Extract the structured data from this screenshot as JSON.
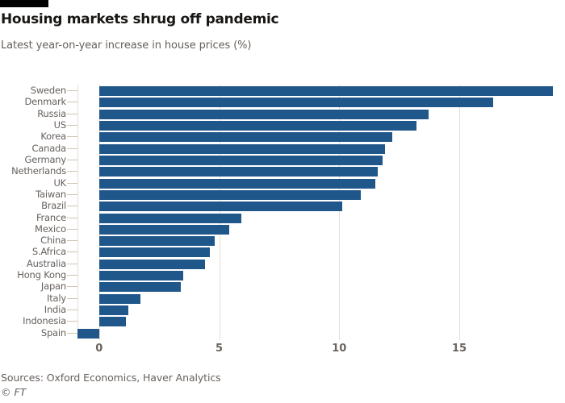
{
  "header": {
    "title": "Housing markets shrug off pandemic",
    "subtitle": "Latest year-on-year increase in house prices (%)"
  },
  "chart_data": {
    "type": "bar",
    "orientation": "horizontal",
    "title": "Housing markets shrug off pandemic",
    "subtitle": "Latest year-on-year increase in house prices (%)",
    "xlabel": "",
    "ylabel": "",
    "categories": [
      "Sweden",
      "Denmark",
      "Russia",
      "US",
      "Korea",
      "Canada",
      "Germany",
      "Netherlands",
      "UK",
      "Taiwan",
      "Brazil",
      "France",
      "Mexico",
      "China",
      "S.Africa",
      "Australia",
      "Hong Kong",
      "Japan",
      "Italy",
      "India",
      "Indonesia",
      "Spain"
    ],
    "values": [
      18.9,
      16.4,
      13.7,
      13.2,
      12.2,
      11.9,
      11.8,
      11.6,
      11.5,
      10.9,
      10.1,
      5.9,
      5.4,
      4.8,
      4.6,
      4.4,
      3.5,
      3.4,
      1.7,
      1.2,
      1.1,
      -0.9
    ],
    "axis": {
      "xlim": [
        -0.9,
        19.3
      ],
      "ticks": [
        0,
        5,
        10,
        15
      ],
      "tick_labels": [
        "0",
        "5",
        "10",
        "15"
      ],
      "grid": true,
      "unit": "%"
    },
    "legend": null
  },
  "footer": {
    "sources": "Sources: Oxford Economics, Haver Analytics",
    "credit": "© FT"
  },
  "colors": {
    "bar": "#20578a",
    "grid": "#e6dfd3",
    "row_tick": "#cfc5b5",
    "title_text": "#191715",
    "secondary_text": "#66605c",
    "axis_text": "#6b645e",
    "top_bar": "#000000",
    "background": "#ffffff"
  }
}
